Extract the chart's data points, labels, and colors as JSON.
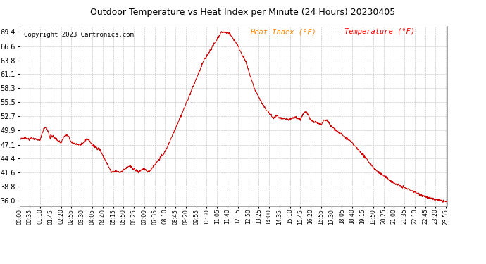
{
  "title": "Outdoor Temperature vs Heat Index per Minute (24 Hours) 20230405",
  "copyright": "Copyright 2023 Cartronics.com",
  "legend_heat": "Heat Index (°F)",
  "legend_temp": "Temperature (°F)",
  "line_color": "#cc0000",
  "background_color": "#ffffff",
  "grid_color": "#bbbbbb",
  "title_color": "#000000",
  "copyright_color": "#000000",
  "legend_heat_color": "#ff8800",
  "legend_temp_color": "#ff0000",
  "ymin": 35.0,
  "ymax": 70.5,
  "yticks": [
    36.0,
    38.8,
    41.6,
    44.4,
    47.1,
    49.9,
    52.7,
    55.5,
    58.3,
    61.1,
    63.8,
    66.6,
    69.4
  ],
  "x_labels": [
    "00:00",
    "00:35",
    "01:10",
    "01:45",
    "02:20",
    "02:55",
    "03:30",
    "04:05",
    "04:40",
    "05:15",
    "05:50",
    "06:25",
    "07:00",
    "07:35",
    "08:10",
    "08:45",
    "09:20",
    "09:55",
    "10:30",
    "11:05",
    "11:40",
    "12:15",
    "12:50",
    "13:25",
    "14:00",
    "14:35",
    "15:10",
    "15:45",
    "16:20",
    "16:55",
    "17:30",
    "18:05",
    "18:40",
    "19:15",
    "19:50",
    "20:25",
    "21:00",
    "21:35",
    "22:10",
    "22:45",
    "23:20",
    "23:55"
  ]
}
